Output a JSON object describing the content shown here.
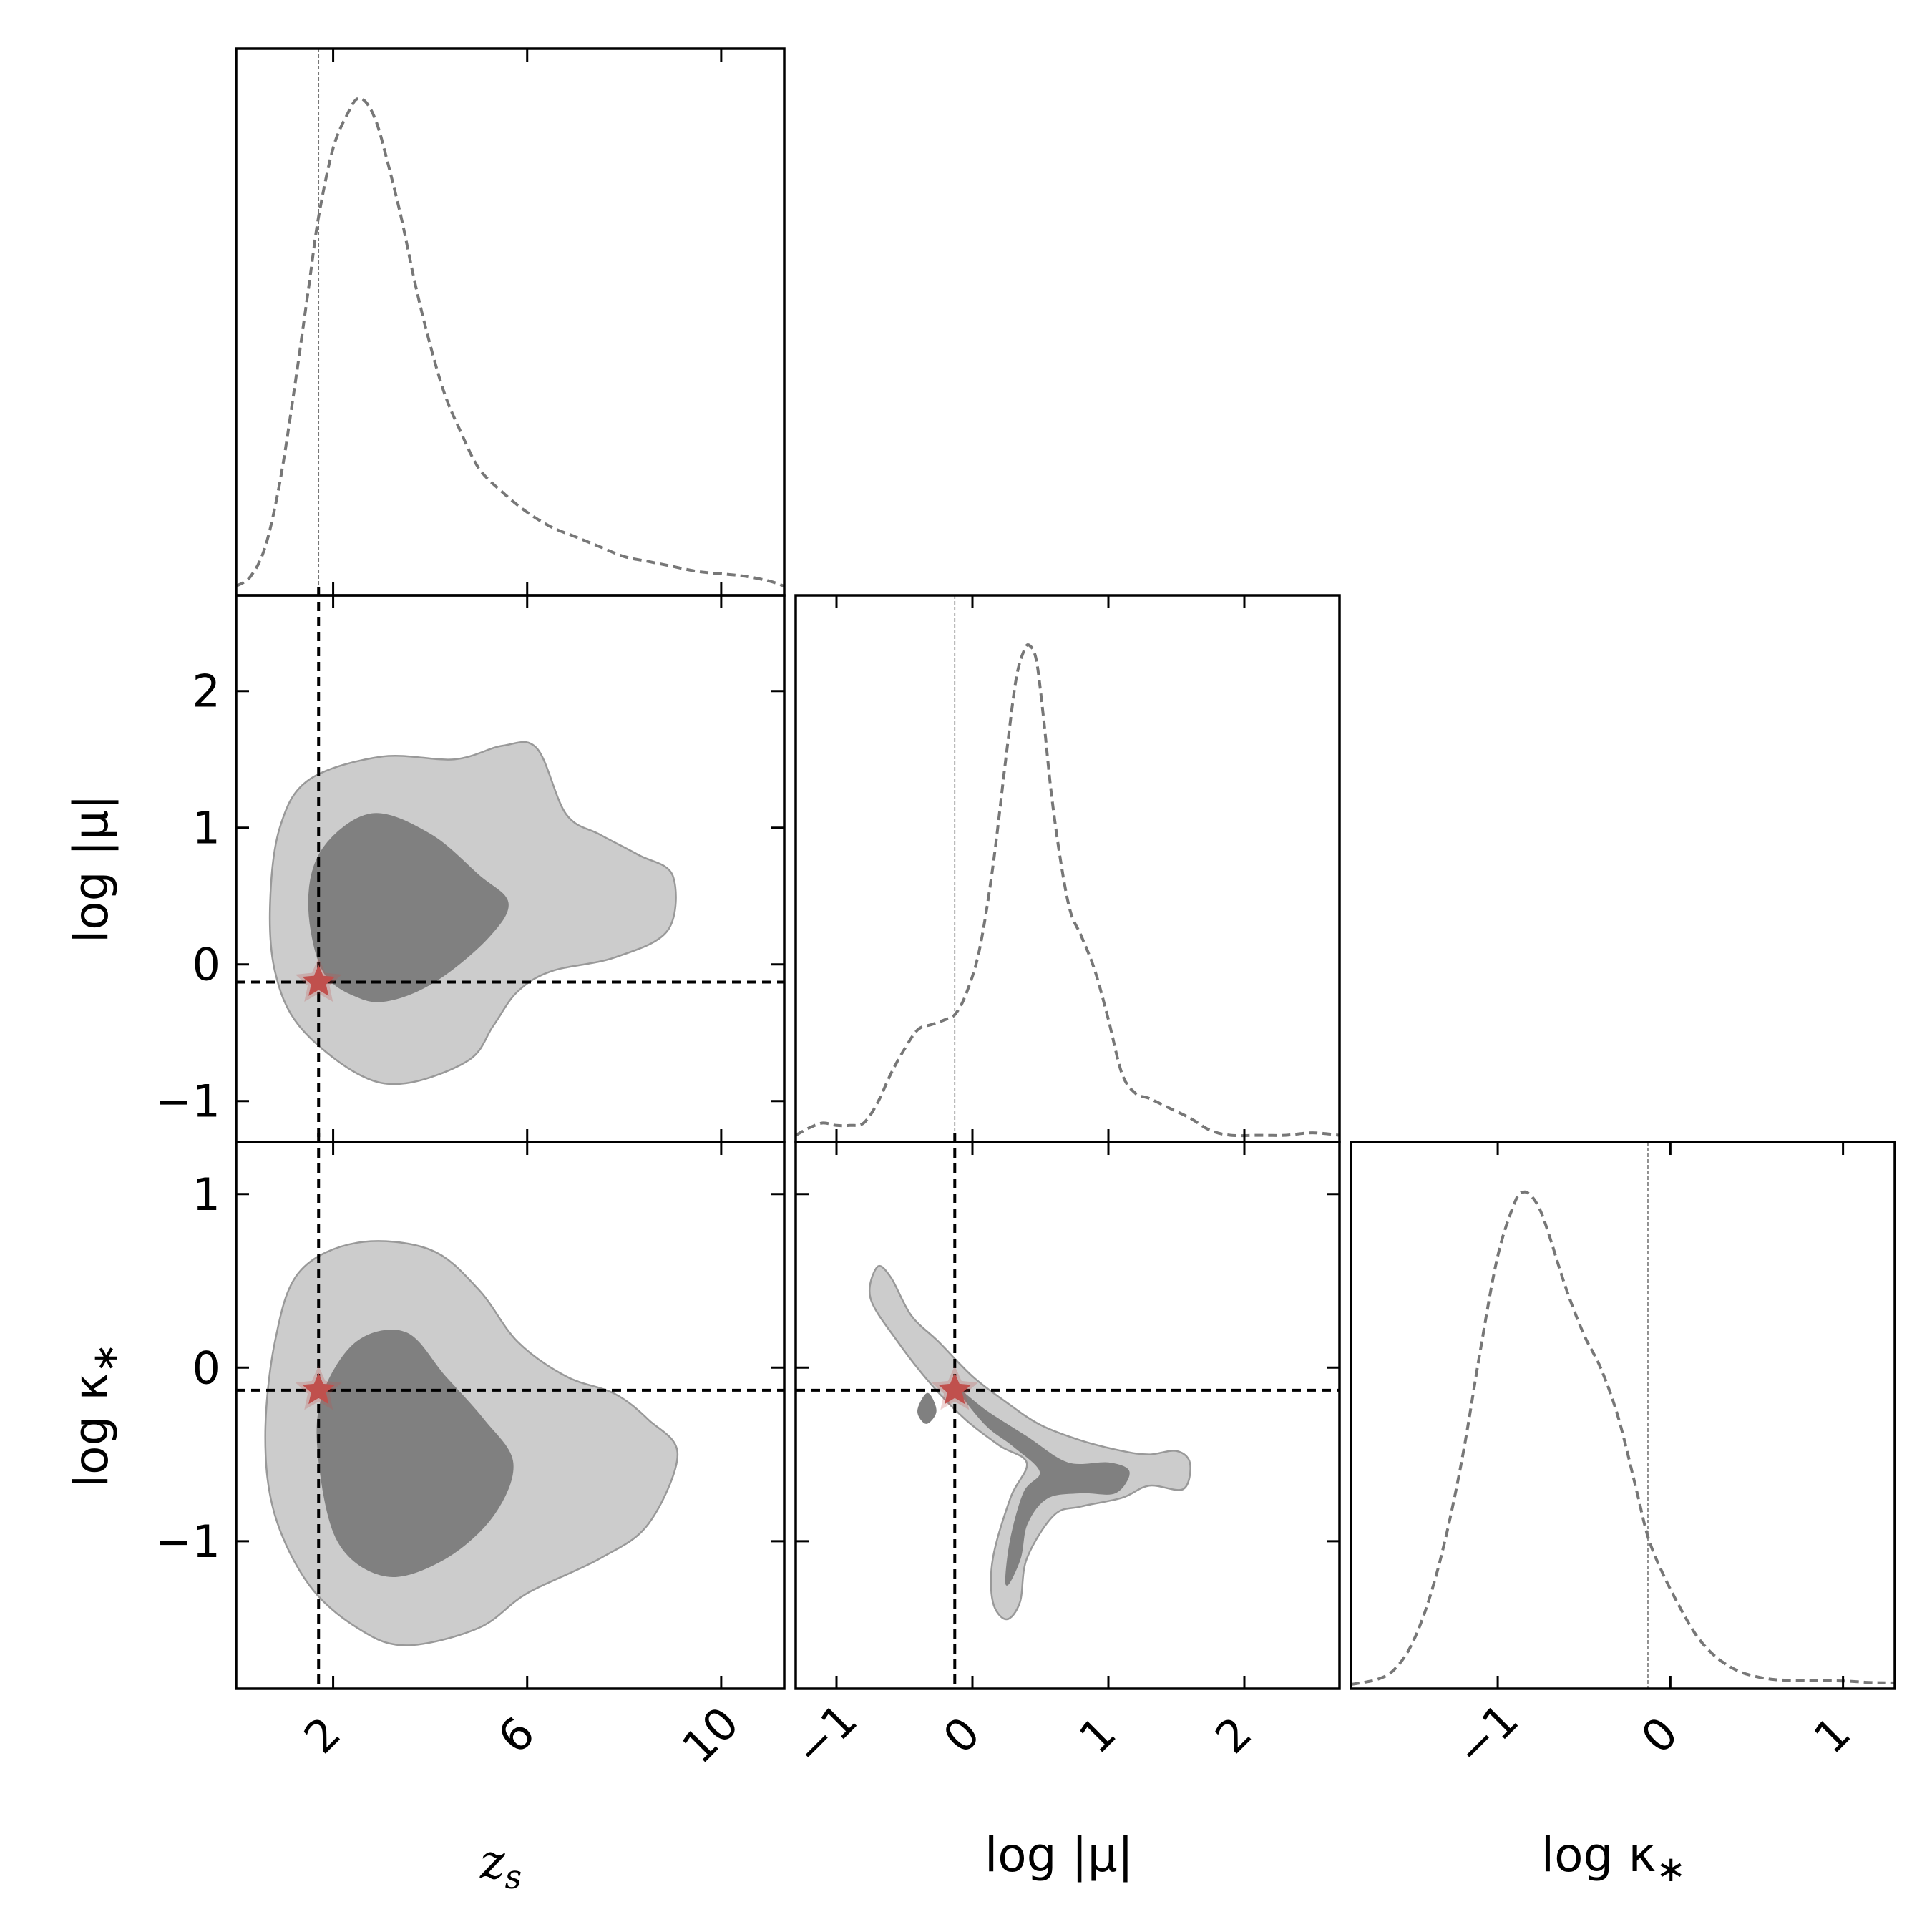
{
  "chart_data": {
    "type": "corner",
    "truth": {
      "z_s": 1.7,
      "log_mu": -0.13,
      "log_kappa": -0.13
    },
    "truth_marker": {
      "shape": "star",
      "color": "#c0504d"
    },
    "colors": {
      "line": "#777777",
      "contour_outer": "#cccccc",
      "contour_inner": "#808080",
      "contour_edge": "#999999",
      "truth_line": "#000000",
      "axes": "#000000"
    },
    "parameters": [
      {
        "key": "z_s",
        "label_main": "z",
        "label_sub": "s",
        "range": [
          0.0,
          11.3
        ],
        "ticks": [
          2,
          6,
          10
        ],
        "tick_labels": [
          "2",
          "6",
          "10"
        ]
      },
      {
        "key": "log_mu",
        "label_text": "log |μ|",
        "range": [
          -1.3,
          2.7
        ],
        "ticks": [
          -1,
          0,
          1,
          2
        ],
        "tick_labels": [
          "−1",
          "0",
          "1",
          "2"
        ]
      },
      {
        "key": "log_kappa",
        "label_text": "log κ",
        "label_sub": "∗",
        "range": [
          -1.85,
          1.3
        ],
        "ticks": [
          -1,
          0,
          1
        ],
        "tick_labels": [
          "−1",
          "0",
          "1"
        ]
      }
    ],
    "marginals": [
      {
        "param": "z_s",
        "x": [
          0.0,
          0.3,
          0.6,
          0.9,
          1.2,
          1.5,
          1.7,
          2.0,
          2.3,
          2.5,
          2.7,
          2.9,
          3.1,
          3.4,
          3.7,
          4.0,
          4.3,
          4.6,
          5.0,
          5.5,
          6.0,
          6.5,
          7.0,
          7.5,
          8.0,
          8.5,
          9.0,
          9.5,
          10.0,
          10.5,
          11.0,
          11.3
        ],
        "density": [
          0.01,
          0.03,
          0.09,
          0.22,
          0.41,
          0.62,
          0.76,
          0.9,
          0.97,
          1.0,
          0.99,
          0.95,
          0.88,
          0.76,
          0.62,
          0.5,
          0.4,
          0.33,
          0.25,
          0.2,
          0.16,
          0.13,
          0.11,
          0.09,
          0.07,
          0.06,
          0.05,
          0.04,
          0.035,
          0.03,
          0.02,
          0.01
        ]
      },
      {
        "param": "log_mu",
        "x": [
          -1.3,
          -1.2,
          -1.1,
          -1.0,
          -0.9,
          -0.8,
          -0.7,
          -0.6,
          -0.5,
          -0.4,
          -0.3,
          -0.2,
          -0.13,
          -0.05,
          0.05,
          0.15,
          0.25,
          0.32,
          0.38,
          0.42,
          0.47,
          0.52,
          0.58,
          0.65,
          0.72,
          0.8,
          0.9,
          1.0,
          1.1,
          1.2,
          1.3,
          1.45,
          1.6,
          1.75,
          1.9,
          2.1,
          2.3,
          2.5,
          2.7
        ],
        "density": [
          0.005,
          0.02,
          0.03,
          0.025,
          0.025,
          0.03,
          0.07,
          0.13,
          0.18,
          0.22,
          0.23,
          0.24,
          0.25,
          0.29,
          0.38,
          0.55,
          0.78,
          0.93,
          0.99,
          1.0,
          0.97,
          0.86,
          0.7,
          0.56,
          0.46,
          0.41,
          0.34,
          0.24,
          0.13,
          0.09,
          0.08,
          0.06,
          0.04,
          0.015,
          0.005,
          0.005,
          0.005,
          0.01,
          0.005
        ]
      },
      {
        "param": "log_kappa",
        "x": [
          -1.85,
          -1.7,
          -1.6,
          -1.5,
          -1.4,
          -1.3,
          -1.2,
          -1.1,
          -1.0,
          -0.9,
          -0.85,
          -0.8,
          -0.75,
          -0.7,
          -0.6,
          -0.5,
          -0.4,
          -0.3,
          -0.2,
          -0.13,
          -0.05,
          0.05,
          0.15,
          0.25,
          0.35,
          0.45,
          0.6,
          0.8,
          1.0,
          1.15,
          1.3
        ],
        "density": [
          0.0,
          0.01,
          0.03,
          0.08,
          0.17,
          0.3,
          0.47,
          0.68,
          0.87,
          0.98,
          1.0,
          0.99,
          0.96,
          0.91,
          0.8,
          0.71,
          0.64,
          0.54,
          0.4,
          0.3,
          0.23,
          0.16,
          0.1,
          0.06,
          0.035,
          0.02,
          0.01,
          0.008,
          0.007,
          0.004,
          0.003
        ]
      }
    ],
    "joints": [
      {
        "x_param": "z_s",
        "y_param": "log_mu",
        "outer": [
          [
            0.7,
            0.45
          ],
          [
            0.9,
            1.0
          ],
          [
            1.5,
            1.35
          ],
          [
            3.0,
            1.52
          ],
          [
            4.5,
            1.5
          ],
          [
            5.5,
            1.6
          ],
          [
            6.2,
            1.58
          ],
          [
            6.8,
            1.1
          ],
          [
            7.5,
            0.95
          ],
          [
            8.3,
            0.8
          ],
          [
            9.0,
            0.65
          ],
          [
            8.9,
            0.25
          ],
          [
            7.8,
            0.05
          ],
          [
            6.5,
            -0.05
          ],
          [
            5.8,
            -0.2
          ],
          [
            5.3,
            -0.45
          ],
          [
            4.8,
            -0.7
          ],
          [
            3.5,
            -0.87
          ],
          [
            2.5,
            -0.8
          ],
          [
            1.3,
            -0.45
          ],
          [
            0.8,
            -0.05
          ],
          [
            0.7,
            0.45
          ]
        ],
        "inner": [
          [
            1.5,
            0.45
          ],
          [
            1.8,
            0.85
          ],
          [
            2.8,
            1.1
          ],
          [
            4.0,
            0.95
          ],
          [
            5.0,
            0.65
          ],
          [
            5.6,
            0.45
          ],
          [
            5.2,
            0.2
          ],
          [
            4.2,
            -0.1
          ],
          [
            3.3,
            -0.25
          ],
          [
            2.6,
            -0.25
          ],
          [
            1.8,
            -0.05
          ],
          [
            1.5,
            0.45
          ]
        ]
      },
      {
        "x_param": "z_s",
        "y_param": "log_kappa",
        "outer": [
          [
            0.6,
            -0.4
          ],
          [
            0.8,
            0.15
          ],
          [
            1.3,
            0.55
          ],
          [
            2.5,
            0.72
          ],
          [
            4.0,
            0.68
          ],
          [
            5.0,
            0.45
          ],
          [
            5.8,
            0.15
          ],
          [
            6.8,
            -0.05
          ],
          [
            7.8,
            -0.15
          ],
          [
            8.5,
            -0.3
          ],
          [
            9.1,
            -0.5
          ],
          [
            8.5,
            -0.9
          ],
          [
            7.5,
            -1.1
          ],
          [
            6.0,
            -1.3
          ],
          [
            5.0,
            -1.5
          ],
          [
            3.5,
            -1.6
          ],
          [
            2.5,
            -1.5
          ],
          [
            1.5,
            -1.25
          ],
          [
            0.8,
            -0.85
          ],
          [
            0.6,
            -0.4
          ]
        ],
        "inner": [
          [
            1.7,
            -0.5
          ],
          [
            1.8,
            -0.15
          ],
          [
            2.5,
            0.15
          ],
          [
            3.5,
            0.2
          ],
          [
            4.3,
            -0.05
          ],
          [
            5.1,
            -0.3
          ],
          [
            5.7,
            -0.55
          ],
          [
            5.3,
            -0.85
          ],
          [
            4.3,
            -1.1
          ],
          [
            3.1,
            -1.2
          ],
          [
            2.1,
            -1.0
          ],
          [
            1.7,
            -0.5
          ]
        ]
      },
      {
        "x_param": "log_mu",
        "y_param": "log_kappa",
        "outer": [
          [
            -0.7,
            0.58
          ],
          [
            -0.6,
            0.52
          ],
          [
            -0.45,
            0.3
          ],
          [
            -0.25,
            0.15
          ],
          [
            0.0,
            -0.05
          ],
          [
            0.25,
            -0.2
          ],
          [
            0.5,
            -0.33
          ],
          [
            0.8,
            -0.42
          ],
          [
            1.1,
            -0.48
          ],
          [
            1.3,
            -0.5
          ],
          [
            1.5,
            -0.48
          ],
          [
            1.6,
            -0.55
          ],
          [
            1.55,
            -0.7
          ],
          [
            1.3,
            -0.68
          ],
          [
            1.1,
            -0.75
          ],
          [
            0.8,
            -0.8
          ],
          [
            0.6,
            -0.85
          ],
          [
            0.4,
            -1.1
          ],
          [
            0.35,
            -1.35
          ],
          [
            0.25,
            -1.45
          ],
          [
            0.15,
            -1.35
          ],
          [
            0.15,
            -1.1
          ],
          [
            0.28,
            -0.75
          ],
          [
            0.4,
            -0.55
          ],
          [
            0.2,
            -0.45
          ],
          [
            -0.05,
            -0.3
          ],
          [
            -0.3,
            -0.1
          ],
          [
            -0.55,
            0.15
          ],
          [
            -0.75,
            0.4
          ],
          [
            -0.7,
            0.58
          ]
        ],
        "inner": [
          [
            -0.1,
            -0.13
          ],
          [
            0.1,
            -0.25
          ],
          [
            0.4,
            -0.4
          ],
          [
            0.7,
            -0.55
          ],
          [
            1.0,
            -0.55
          ],
          [
            1.15,
            -0.6
          ],
          [
            1.05,
            -0.72
          ],
          [
            0.8,
            -0.72
          ],
          [
            0.55,
            -0.75
          ],
          [
            0.4,
            -0.9
          ],
          [
            0.35,
            -1.1
          ],
          [
            0.25,
            -1.25
          ],
          [
            0.28,
            -1.0
          ],
          [
            0.38,
            -0.72
          ],
          [
            0.5,
            -0.6
          ],
          [
            0.3,
            -0.45
          ],
          [
            0.1,
            -0.33
          ],
          [
            -0.1,
            -0.13
          ]
        ],
        "inner_island": [
          [
            -0.4,
            -0.25
          ],
          [
            -0.33,
            -0.15
          ],
          [
            -0.27,
            -0.25
          ],
          [
            -0.34,
            -0.32
          ],
          [
            -0.4,
            -0.25
          ]
        ]
      }
    ]
  }
}
